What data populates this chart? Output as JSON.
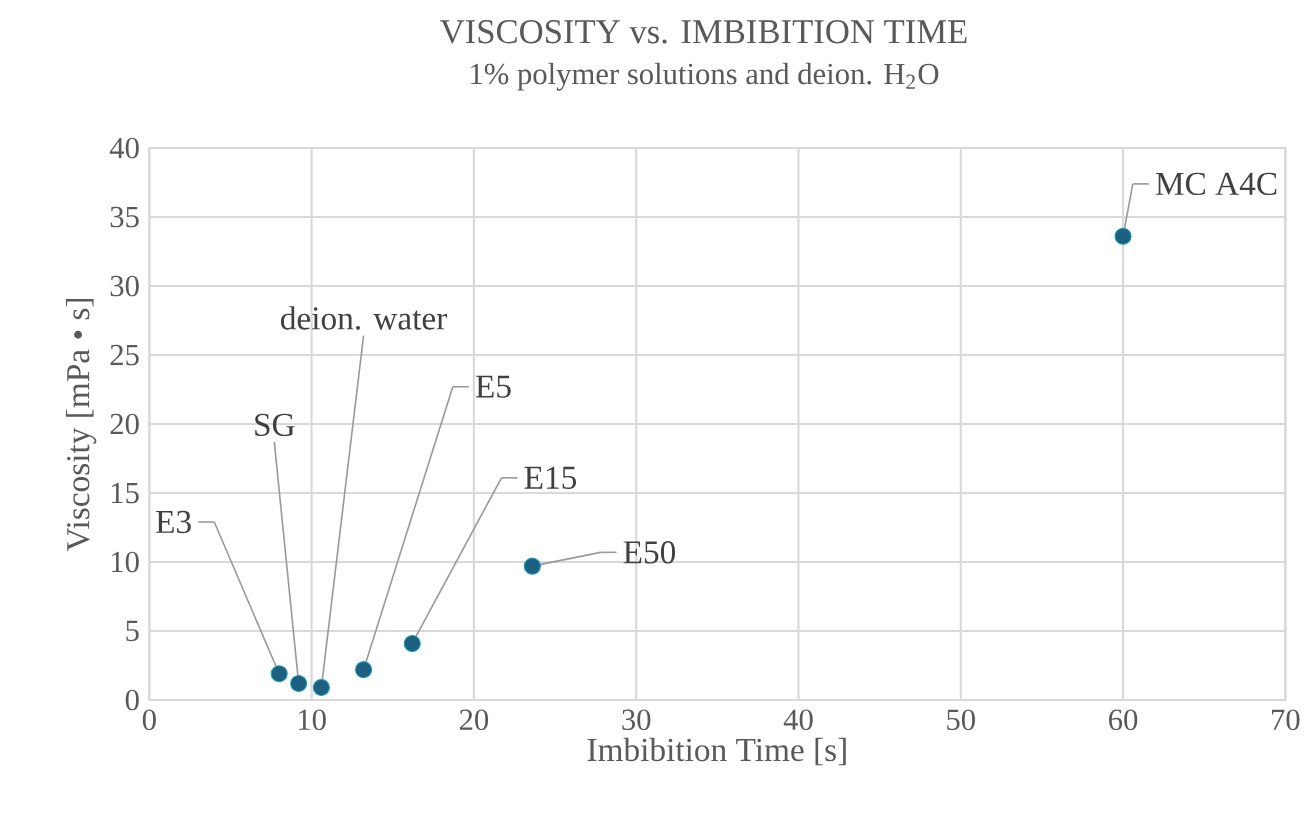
{
  "chart_data": {
    "type": "scatter",
    "title": "VISCOSITY vs. IMBIBITION TIME",
    "subtitle": "1% polymer solutions and deion. H$_{2}$O",
    "xlabel": "Imbibition Time [s]",
    "ylabel": "Viscosity [mPa • s]",
    "x": [
      8.0,
      9.2,
      10.6,
      13.2,
      16.2,
      23.6,
      60.0
    ],
    "series": [
      {
        "color": "#1f5f7f",
        "values": [
          1.9,
          1.2,
          0.9,
          2.2,
          4.1,
          9.7,
          33.6
        ]
      }
    ],
    "xlim": [
      0,
      70
    ],
    "xticks": [
      0,
      10,
      20,
      30,
      40,
      50,
      60,
      70
    ],
    "ylim": [
      0,
      40
    ],
    "yticks": [
      0,
      5,
      10,
      15,
      20,
      25,
      30,
      35,
      40
    ],
    "grid": true,
    "marker": "circle",
    "annotations": [
      {
        "text": "E3",
        "x": 8.0,
        "y": 1.9
      },
      {
        "text": "SG",
        "x": 9.2,
        "y": 1.2
      },
      {
        "text": "deion. water",
        "x": 10.6,
        "y": 0.9
      },
      {
        "text": "E5",
        "x": 13.2,
        "y": 2.2
      },
      {
        "text": "E15",
        "x": 16.2,
        "y": 4.1
      },
      {
        "text": "E50",
        "x": 23.6,
        "y": 9.7
      },
      {
        "text": "MC A4C",
        "x": 60.0,
        "y": 33.6
      }
    ]
  }
}
